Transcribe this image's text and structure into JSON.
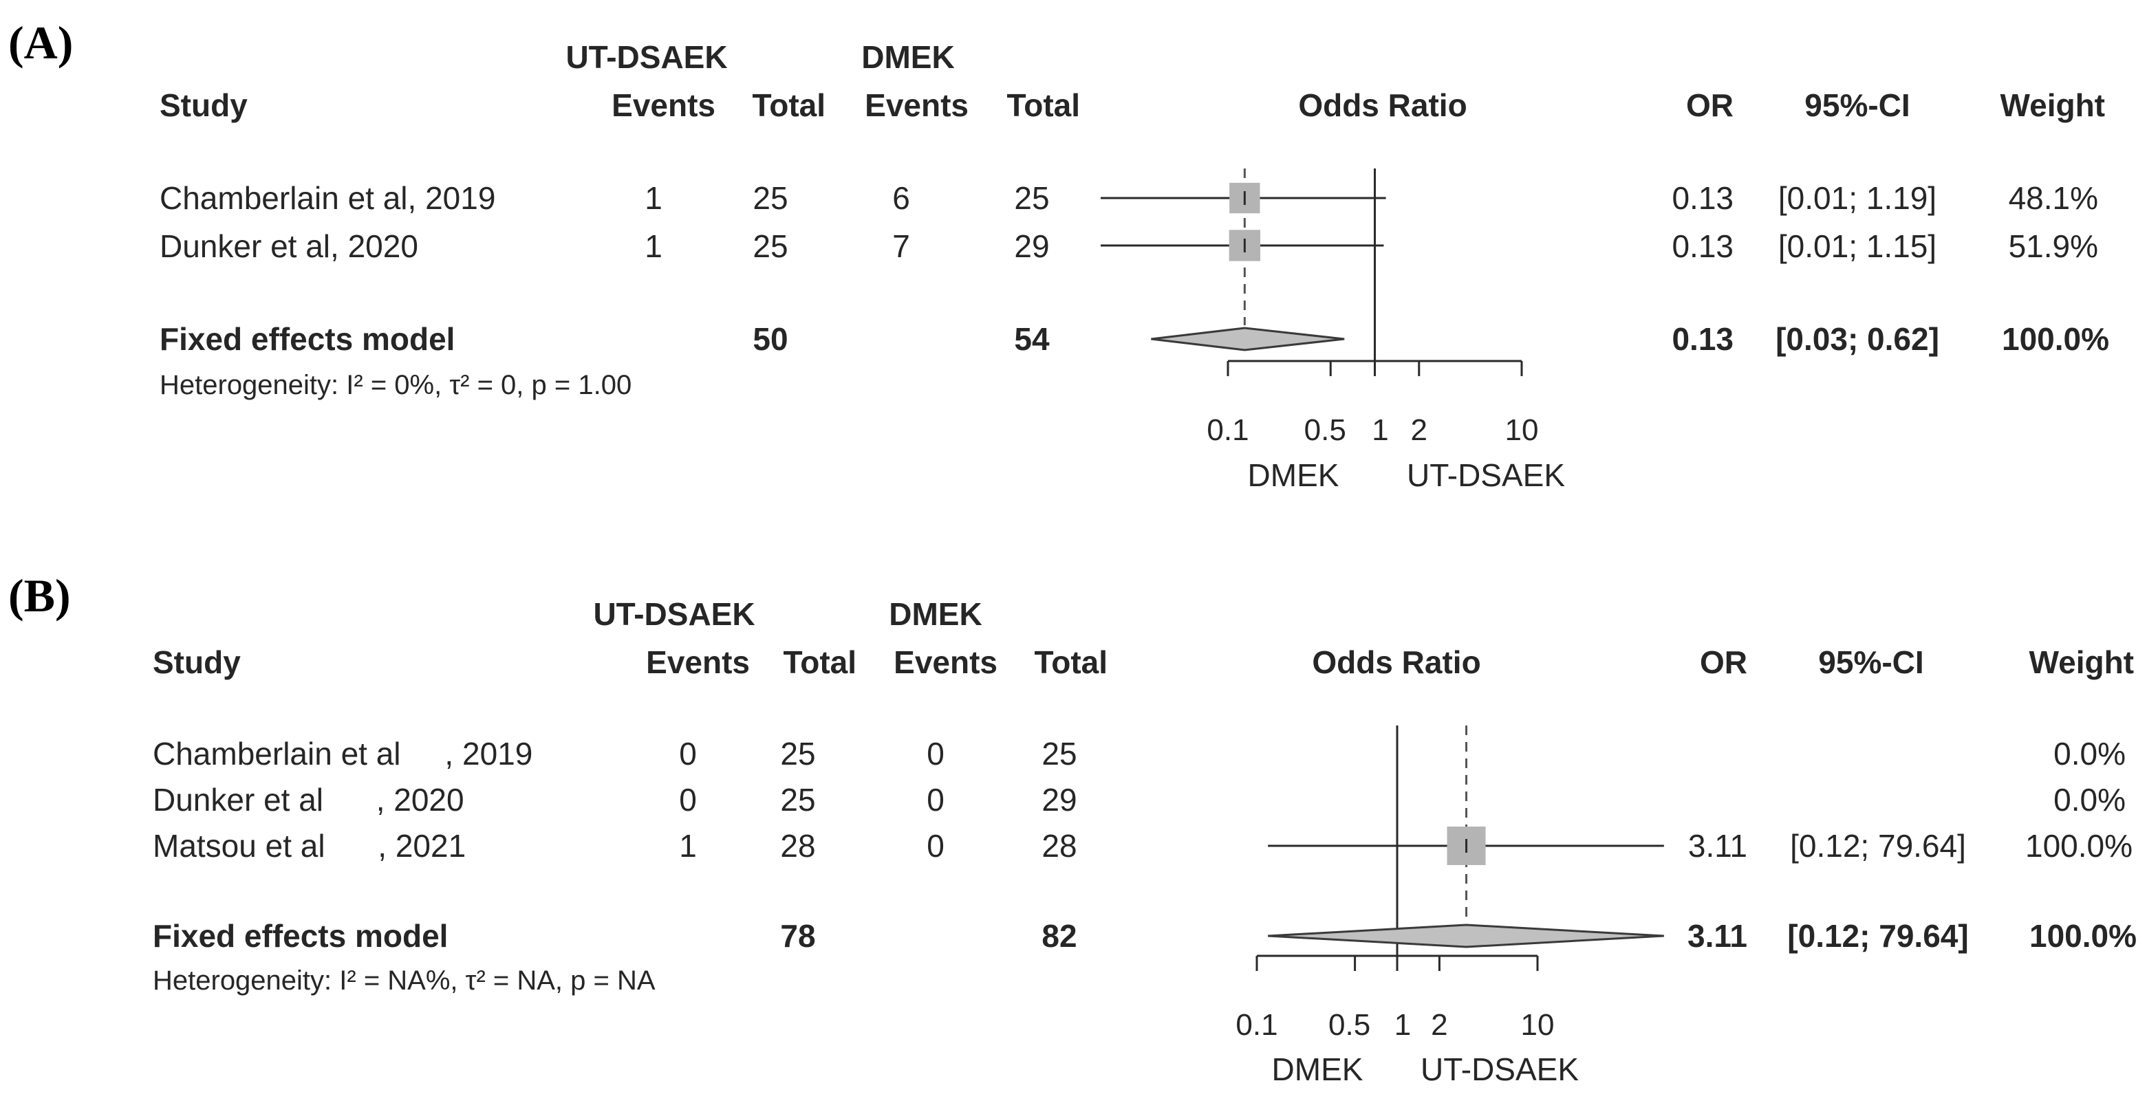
{
  "panels": [
    {
      "label": "(A)",
      "headers": {
        "study": "Study",
        "group_exp": "UT-DSAEK",
        "group_ctrl": "DMEK",
        "events_exp": "Events",
        "total_exp": "Total",
        "events_ctrl": "Events",
        "total_ctrl": "Total",
        "plot": "Odds Ratio",
        "or": "OR",
        "ci": "95%-CI",
        "weight": "Weight"
      },
      "studies": [
        {
          "study": "Chamberlain et al, 2019",
          "events_exp": "1",
          "total_exp": "25",
          "events_ctrl": "6",
          "total_ctrl": "25",
          "or": "0.13",
          "ci": "[0.01; 1.19]",
          "weight": "48.1%"
        },
        {
          "study": "Dunker et al, 2020",
          "events_exp": "1",
          "total_exp": "25",
          "events_ctrl": "7",
          "total_ctrl": "29",
          "or": "0.13",
          "ci": "[0.01; 1.15]",
          "weight": "51.9%"
        }
      ],
      "pooled": {
        "label": "Fixed effects model",
        "total_exp": "50",
        "total_ctrl": "54",
        "or": "0.13",
        "ci": "[0.03; 0.62]",
        "weight": "100.0%"
      },
      "heterogeneity": "Heterogeneity: I² = 0%, τ² = 0, p = 1.00",
      "axis_ticks": [
        "0.1",
        "0.5",
        "1",
        "2",
        "10"
      ],
      "favours_left": "DMEK",
      "favours_right": "UT-DSAEK"
    },
    {
      "label": "(B)",
      "headers": {
        "study": "Study",
        "group_exp": "UT-DSAEK",
        "group_ctrl": "DMEK",
        "events_exp": "Events",
        "total_exp": "Total",
        "events_ctrl": "Events",
        "total_ctrl": "Total",
        "plot": "Odds Ratio",
        "or": "OR",
        "ci": "95%-CI",
        "weight": "Weight"
      },
      "studies": [
        {
          "study": "Chamberlain et al     , 2019",
          "events_exp": "0",
          "total_exp": "25",
          "events_ctrl": "0",
          "total_ctrl": "25",
          "or": "",
          "ci": "",
          "weight": "0.0%"
        },
        {
          "study": "Dunker et al      , 2020",
          "events_exp": "0",
          "total_exp": "25",
          "events_ctrl": "0",
          "total_ctrl": "29",
          "or": "",
          "ci": "",
          "weight": "0.0%"
        },
        {
          "study": "Matsou et al      , 2021",
          "events_exp": "1",
          "total_exp": "28",
          "events_ctrl": "0",
          "total_ctrl": "28",
          "or": "3.11",
          "ci": "[0.12; 79.64]",
          "weight": "100.0%"
        }
      ],
      "pooled": {
        "label": "Fixed effects model",
        "total_exp": "78",
        "total_ctrl": "82",
        "or": "3.11",
        "ci": "[0.12; 79.64]",
        "weight": "100.0%"
      },
      "heterogeneity": "Heterogeneity: I² = NA%, τ² = NA, p = NA",
      "axis_ticks": [
        "0.1",
        "0.5",
        "1",
        "2",
        "10"
      ],
      "favours_left": "DMEK",
      "favours_right": "UT-DSAEK"
    }
  ],
  "chart_data": [
    {
      "type": "forest",
      "panel": "(A)",
      "scale": "log",
      "xlabel": "Odds Ratio",
      "xticks": [
        0.1,
        0.5,
        1,
        2,
        10
      ],
      "null_value": 1,
      "series": [
        {
          "name": "Chamberlain et al, 2019",
          "or": 0.13,
          "ci_low": 0.01,
          "ci_high": 1.19,
          "weight": 48.1
        },
        {
          "name": "Dunker et al, 2020",
          "or": 0.13,
          "ci_low": 0.01,
          "ci_high": 1.15,
          "weight": 51.9
        }
      ],
      "pooled": {
        "name": "Fixed effects model",
        "or": 0.13,
        "ci_low": 0.03,
        "ci_high": 0.62,
        "weight": 100.0
      }
    },
    {
      "type": "forest",
      "panel": "(B)",
      "scale": "log",
      "xlabel": "Odds Ratio",
      "xticks": [
        0.1,
        0.5,
        1,
        2,
        10
      ],
      "null_value": 1,
      "series": [
        {
          "name": "Chamberlain et al, 2019",
          "or": null,
          "ci_low": null,
          "ci_high": null,
          "weight": 0.0
        },
        {
          "name": "Dunker et al, 2020",
          "or": null,
          "ci_low": null,
          "ci_high": null,
          "weight": 0.0
        },
        {
          "name": "Matsou et al, 2021",
          "or": 3.11,
          "ci_low": 0.12,
          "ci_high": 79.64,
          "weight": 100.0
        }
      ],
      "pooled": {
        "name": "Fixed effects model",
        "or": 3.11,
        "ci_low": 0.12,
        "ci_high": 79.64,
        "weight": 100.0
      }
    }
  ]
}
